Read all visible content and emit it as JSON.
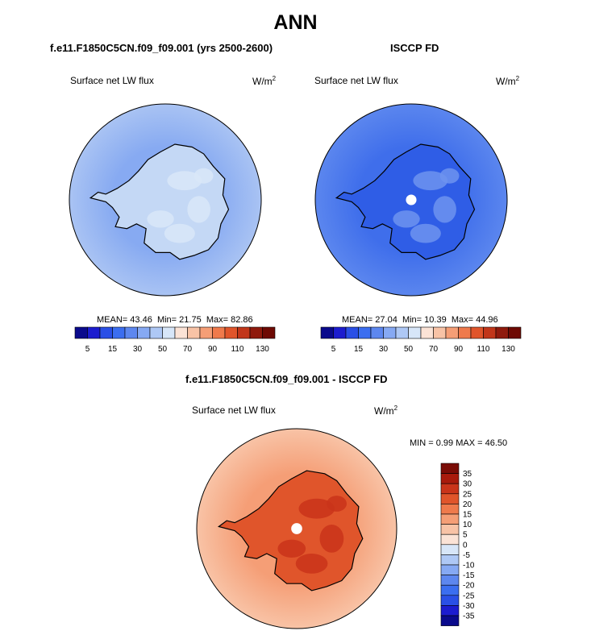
{
  "page": {
    "main_title": "ANN",
    "diff_title": "f.e11.F1850C5CN.f09_f09.001 - ISCCP FD"
  },
  "chart_data": [
    {
      "type": "heatmap",
      "title": "f.e11.F1850C5CN.f09_f09.001 (yrs 2500-2600)",
      "variable": "Surface net LW flux",
      "units": "W/m",
      "units_sup": "2",
      "stats": {
        "mean_label": "MEAN=",
        "mean": "43.46",
        "min_label": "Min=",
        "min": "21.75",
        "max_label": "Max=",
        "max": "82.86"
      },
      "colorbar": {
        "levels": [
          "5",
          "10",
          "15",
          "20",
          "30",
          "40",
          "50",
          "60",
          "70",
          "80",
          "90",
          "100",
          "110",
          "120",
          "130"
        ],
        "tick_labels": [
          "5",
          "15",
          "30",
          "50",
          "70",
          "90",
          "110",
          "130"
        ],
        "colors": [
          "#0a0a8c",
          "#1c1ccf",
          "#2a4fe6",
          "#3b6ef0",
          "#5d87ef",
          "#86a9f3",
          "#aec8f5",
          "#d7e6f8",
          "#fbe3d6",
          "#f8c3a6",
          "#f59e76",
          "#ef7a4c",
          "#e0552b",
          "#c1361a",
          "#8f1a0d",
          "#6e0a04"
        ]
      },
      "field": {
        "ocean_far": "#a9c3f3",
        "ocean_near": "#87aaf2",
        "land": "#c4d8f5",
        "land_light": "#d9e7f8"
      }
    },
    {
      "type": "heatmap",
      "title": "ISCCP FD",
      "variable": "Surface net LW flux",
      "units": "W/m",
      "units_sup": "2",
      "stats": {
        "mean_label": "MEAN=",
        "mean": "27.04",
        "min_label": "Min=",
        "min": "10.39",
        "max_label": "Max=",
        "max": "44.96"
      },
      "colorbar": {
        "levels": [
          "5",
          "10",
          "15",
          "20",
          "30",
          "40",
          "50",
          "60",
          "70",
          "80",
          "90",
          "100",
          "110",
          "120",
          "130"
        ],
        "tick_labels": [
          "5",
          "15",
          "30",
          "50",
          "70",
          "90",
          "110",
          "130"
        ],
        "colors": [
          "#0a0a8c",
          "#1c1ccf",
          "#2a4fe6",
          "#3b6ef0",
          "#5d87ef",
          "#86a9f3",
          "#aec8f5",
          "#d7e6f8",
          "#fbe3d6",
          "#f8c3a6",
          "#f59e76",
          "#ef7a4c",
          "#e0552b",
          "#c1361a",
          "#8f1a0d",
          "#6e0a04"
        ]
      },
      "field": {
        "ocean_far": "#5b86ee",
        "ocean_near": "#3f6eeb",
        "land": "#2f5de6",
        "land_light": "#6d93ef"
      }
    },
    {
      "type": "heatmap",
      "title": "f.e11.F1850C5CN.f09_f09.001 - ISCCP FD",
      "variable": "Surface net LW flux",
      "units": "W/m",
      "units_sup": "2",
      "stats": {
        "min_label": "MIN =",
        "min": "0.99",
        "max_label": "MAX =",
        "max": "46.50"
      },
      "colorbar": {
        "levels": [
          "35",
          "30",
          "25",
          "20",
          "15",
          "10",
          "5",
          "0",
          "-5",
          "-10",
          "-15",
          "-20",
          "-25",
          "-30",
          "-35"
        ],
        "colors": [
          "#7a0c06",
          "#a81a0c",
          "#c9341a",
          "#e0552b",
          "#ef7a4c",
          "#f59e76",
          "#f8c3a6",
          "#fbe3d6",
          "#d7e6f8",
          "#aec8f5",
          "#86a9f3",
          "#5d87ef",
          "#3b6ef0",
          "#2a4fe6",
          "#1c1ccf",
          "#0a0a8c"
        ]
      },
      "field": {
        "ocean_far": "#f8c3a6",
        "ocean_near": "#f59e76",
        "land": "#e0552b",
        "land_light": "#c9341a"
      }
    }
  ]
}
